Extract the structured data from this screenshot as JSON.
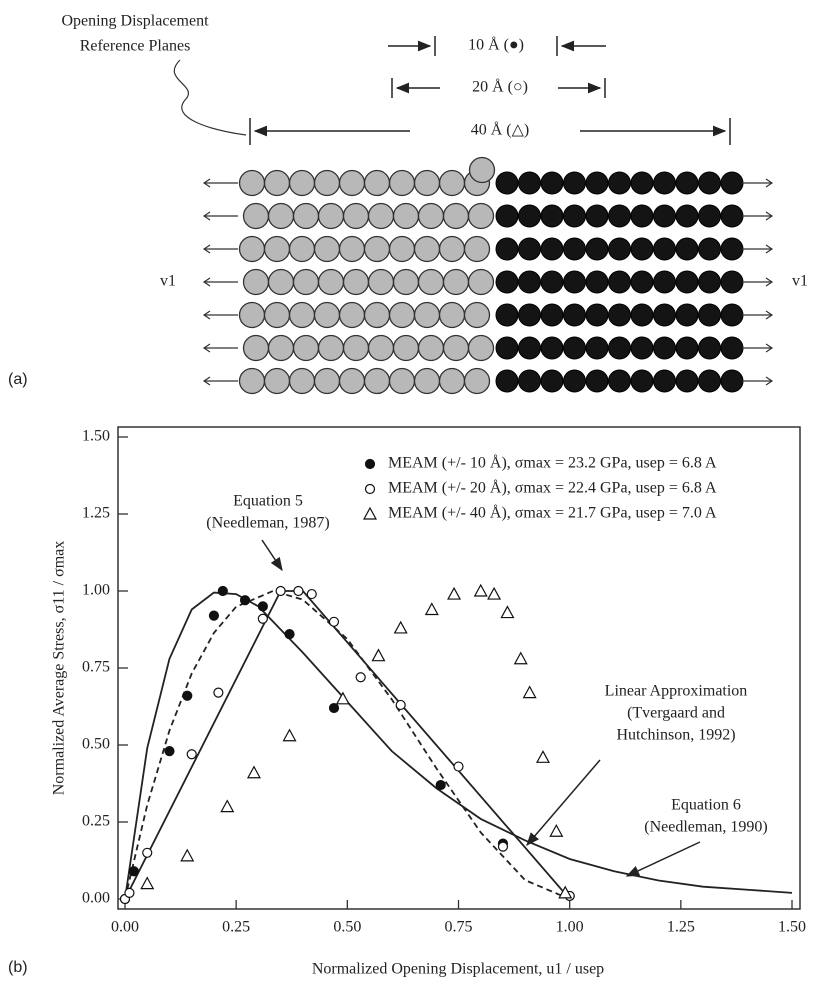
{
  "diagram": {
    "label_lines": [
      "Opening Displacement",
      "Reference Planes"
    ],
    "spans": [
      "10 Å (●)",
      "20 Å (○)",
      "40 Å (△)"
    ],
    "velocity_left": "v1",
    "velocity_right": "v1",
    "panel_label": "(a)"
  },
  "chart_data": {
    "type": "scatter",
    "panel_label": "(b)",
    "x_label": "Normalized Opening Displacement, u1 / usep",
    "y_label": "Normalized Average Stress, σ11 / σmax",
    "xlim": [
      0,
      1.5
    ],
    "ylim": [
      0,
      1.5
    ],
    "xticks": [
      {
        "value": 0,
        "label": "0.00"
      },
      {
        "value": 0.25,
        "label": "0.25"
      },
      {
        "value": 0.5,
        "label": "0.50"
      },
      {
        "value": 0.75,
        "label": "0.75"
      },
      {
        "value": 1,
        "label": "1.00"
      },
      {
        "value": 1.25,
        "label": "1.25"
      },
      {
        "value": 1.5,
        "label": "1.50"
      }
    ],
    "yticks": [
      {
        "value": 0,
        "label": "0.00"
      },
      {
        "value": 0.25,
        "label": "0.25"
      },
      {
        "value": 0.5,
        "label": "0.50"
      },
      {
        "value": 0.75,
        "label": "0.75"
      },
      {
        "value": 1,
        "label": "1.00"
      },
      {
        "value": 1.25,
        "label": "1.25"
      },
      {
        "value": 1.5,
        "label": "1.50"
      }
    ],
    "series": [
      {
        "name": "MEAM (+/- 10 Å), σmax = 23.2 GPa, usep = 6.8 A",
        "marker": "filled-circle",
        "color": "#111111",
        "x": [
          0,
          0.02,
          0.1,
          0.14,
          0.2,
          0.22,
          0.27,
          0.31,
          0.37,
          0.47,
          0.71,
          0.85,
          1.0
        ],
        "values": [
          0,
          0.09,
          0.48,
          0.66,
          0.92,
          1.0,
          0.97,
          0.95,
          0.86,
          0.62,
          0.37,
          0.18,
          0.01
        ]
      },
      {
        "name": "MEAM (+/- 20 Å), σmax = 22.4 GPa, usep = 6.8 A",
        "marker": "open-circle",
        "color": "#111111",
        "x": [
          0,
          0.01,
          0.05,
          0.15,
          0.21,
          0.31,
          0.35,
          0.39,
          0.42,
          0.47,
          0.53,
          0.62,
          0.75,
          0.85,
          1.0
        ],
        "values": [
          0,
          0.02,
          0.15,
          0.47,
          0.67,
          0.91,
          1.0,
          1.0,
          0.99,
          0.9,
          0.72,
          0.63,
          0.43,
          0.17,
          0.01
        ]
      },
      {
        "name": "MEAM (+/- 40 Å), σmax = 21.7 GPa, usep = 7.0 A",
        "marker": "open-triangle",
        "color": "#111111",
        "x": [
          0.05,
          0.14,
          0.23,
          0.29,
          0.37,
          0.49,
          0.57,
          0.62,
          0.69,
          0.74,
          0.8,
          0.83,
          0.86,
          0.89,
          0.91,
          0.94,
          0.97,
          0.99
        ],
        "values": [
          0.05,
          0.14,
          0.3,
          0.41,
          0.53,
          0.65,
          0.79,
          0.88,
          0.94,
          0.99,
          1.0,
          0.99,
          0.93,
          0.78,
          0.67,
          0.46,
          0.22,
          0.02
        ]
      }
    ],
    "curves": [
      {
        "style": "solid",
        "x": [
          0,
          0.05,
          0.1,
          0.15,
          0.2,
          0.25,
          0.3,
          0.4,
          0.5,
          0.6,
          0.7,
          0.8,
          0.9,
          1.0,
          1.1,
          1.2,
          1.3,
          1.4,
          1.5
        ],
        "values": [
          0,
          0.49,
          0.78,
          0.94,
          0.995,
          0.99,
          0.95,
          0.8,
          0.64,
          0.48,
          0.36,
          0.26,
          0.19,
          0.13,
          0.09,
          0.06,
          0.04,
          0.03,
          0.02
        ]
      },
      {
        "style": "dashed",
        "x": [
          0,
          0.05,
          0.1,
          0.15,
          0.2,
          0.25,
          0.333,
          0.4,
          0.5,
          0.6,
          0.7,
          0.8,
          0.9,
          1.0
        ],
        "values": [
          0,
          0.305,
          0.547,
          0.732,
          0.864,
          0.949,
          1.0,
          0.972,
          0.844,
          0.648,
          0.425,
          0.216,
          0.061,
          0
        ]
      },
      {
        "style": "solid",
        "x": [
          0,
          0.35,
          0.4,
          1.0
        ],
        "values": [
          0,
          1,
          1,
          0
        ]
      }
    ],
    "annotations": [
      {
        "lines": [
          "Equation 5",
          "(Needleman, 1987)"
        ]
      },
      {
        "lines": [
          "Linear Approximation",
          "(Tvergaard and",
          "Hutchinson, 1992)"
        ]
      },
      {
        "lines": [
          "Equation 6",
          "(Needleman, 1990)"
        ]
      }
    ]
  }
}
